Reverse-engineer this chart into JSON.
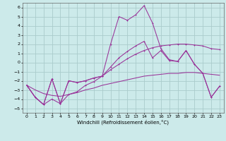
{
  "background_color": "#cceaea",
  "grid_color": "#aacccc",
  "line_color": "#993399",
  "xlim": [
    -0.5,
    23.5
  ],
  "ylim": [
    -5.5,
    6.5
  ],
  "xlabel": "Windchill (Refroidissement éolien,°C)",
  "yticks": [
    -5,
    -4,
    -3,
    -2,
    -1,
    0,
    1,
    2,
    3,
    4,
    5,
    6
  ],
  "xticks": [
    0,
    1,
    2,
    3,
    4,
    5,
    6,
    7,
    8,
    9,
    10,
    11,
    12,
    13,
    14,
    15,
    16,
    17,
    18,
    19,
    20,
    21,
    22,
    23
  ],
  "series1_x": [
    0,
    1,
    2,
    3,
    4,
    5,
    6,
    7,
    8,
    9,
    10,
    11,
    12,
    13,
    14,
    15,
    16,
    17,
    18,
    19,
    20,
    21,
    22,
    23
  ],
  "series1_y": [
    -2.5,
    -3.8,
    -4.6,
    -1.8,
    -4.5,
    -2.0,
    -2.2,
    -2.0,
    -1.7,
    -1.5,
    2.0,
    5.0,
    4.6,
    5.2,
    6.2,
    4.3,
    1.5,
    0.3,
    0.1,
    1.3,
    -0.2,
    -1.2,
    -3.8,
    -2.6
  ],
  "series2_x": [
    0,
    1,
    2,
    3,
    4,
    5,
    6,
    7,
    8,
    9,
    10,
    11,
    12,
    13,
    14,
    15,
    16,
    17,
    18,
    19,
    20,
    21,
    22,
    23
  ],
  "series2_y": [
    -2.5,
    -3.8,
    -4.6,
    -4.0,
    -4.5,
    -3.5,
    -3.2,
    -2.5,
    -2.1,
    -1.5,
    -0.8,
    -0.2,
    0.4,
    0.9,
    1.3,
    1.6,
    1.8,
    1.9,
    2.0,
    2.0,
    1.9,
    1.8,
    1.5,
    1.4
  ],
  "series3_x": [
    0,
    1,
    2,
    3,
    4,
    5,
    6,
    7,
    8,
    9,
    10,
    11,
    12,
    13,
    14,
    15,
    16,
    17,
    18,
    19,
    20,
    21,
    22,
    23
  ],
  "series3_y": [
    -2.5,
    -3.0,
    -3.4,
    -3.6,
    -3.7,
    -3.5,
    -3.3,
    -3.0,
    -2.8,
    -2.5,
    -2.3,
    -2.1,
    -1.9,
    -1.7,
    -1.5,
    -1.4,
    -1.3,
    -1.2,
    -1.2,
    -1.1,
    -1.1,
    -1.2,
    -1.3,
    -1.4
  ],
  "series4_x": [
    0,
    1,
    2,
    3,
    4,
    5,
    6,
    7,
    8,
    9,
    10,
    11,
    12,
    13,
    14,
    15,
    16,
    17,
    18,
    19,
    20,
    21,
    22,
    23
  ],
  "series4_y": [
    -2.5,
    -3.8,
    -4.6,
    -1.8,
    -4.5,
    -2.0,
    -2.2,
    -2.0,
    -1.7,
    -1.5,
    -0.5,
    0.5,
    1.2,
    1.8,
    2.3,
    0.5,
    1.3,
    0.2,
    0.1,
    1.3,
    -0.2,
    -1.2,
    -3.8,
    -2.6
  ]
}
